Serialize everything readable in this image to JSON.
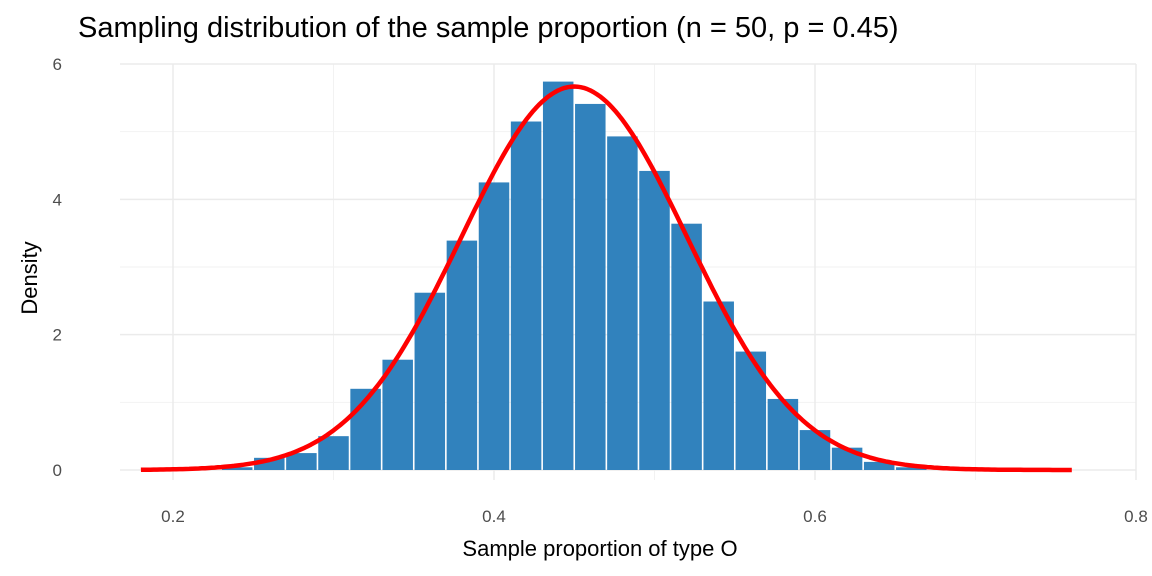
{
  "chart_data": {
    "type": "bar",
    "title": "Sampling distribution of the sample proportion (n = 50, p = 0.45)",
    "xlabel": "Sample proportion of type O",
    "ylabel": "Density",
    "xlim": [
      0.15,
      0.8
    ],
    "ylim": [
      0,
      6
    ],
    "xticks": [
      0.2,
      0.4,
      0.6,
      0.8
    ],
    "xtick_labels": [
      "0.2",
      "0.4",
      "0.6",
      "0.8"
    ],
    "yticks": [
      0,
      2,
      4,
      6
    ],
    "ytick_labels": [
      "0",
      "2",
      "4",
      "6"
    ],
    "grid": true,
    "binwidth": 0.02,
    "bars": {
      "x": [
        0.24,
        0.26,
        0.28,
        0.3,
        0.32,
        0.34,
        0.36,
        0.38,
        0.4,
        0.42,
        0.44,
        0.46,
        0.48,
        0.5,
        0.52,
        0.54,
        0.56,
        0.58,
        0.6,
        0.62,
        0.64,
        0.66
      ],
      "values": [
        0.04,
        0.18,
        0.25,
        0.5,
        1.2,
        1.63,
        2.62,
        3.39,
        4.25,
        5.15,
        5.74,
        5.41,
        4.93,
        4.42,
        3.64,
        2.49,
        1.75,
        1.05,
        0.59,
        0.33,
        0.12,
        0.04
      ],
      "color": "#3182bd"
    },
    "curve": {
      "name": "Normal approximation",
      "mean": 0.45,
      "sd": 0.0704,
      "x_range": [
        0.18,
        0.76
      ],
      "color": "#ff0000"
    }
  }
}
